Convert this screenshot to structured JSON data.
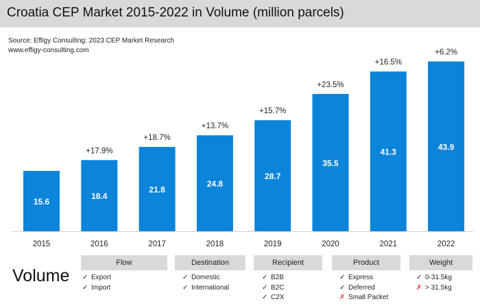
{
  "header": {
    "title": "Croatia CEP Market 2015-2022 in Volume (million parcels)",
    "source": "Source: Effigy Consulting: 2023 CEP Market Research",
    "website": "www.effigy-consulting.com"
  },
  "chart_data": {
    "type": "bar",
    "title": "Croatia CEP Market 2015-2022 in Volume (million parcels)",
    "categories": [
      "2015",
      "2016",
      "2017",
      "2018",
      "2019",
      "2020",
      "2021",
      "2022"
    ],
    "values": [
      15.6,
      18.4,
      21.8,
      24.8,
      28.7,
      35.5,
      41.3,
      43.9
    ],
    "value_labels": [
      "15.6",
      "18.4",
      "21.8",
      "24.8",
      "28.7",
      "35.5",
      "41.3",
      "43.9"
    ],
    "growth_labels": [
      "",
      "+17.9%",
      "+18.7%",
      "+13.7%",
      "+15.7%",
      "+23.5%",
      "+16.5%",
      "+6.2%"
    ],
    "xlabel": "",
    "ylabel": "",
    "ylim": [
      0,
      44
    ],
    "grid": false,
    "bar_color": "#0b84d9"
  },
  "segments": {
    "label": "Volume",
    "groups": [
      {
        "title": "Flow",
        "items": [
          {
            "mark": "✓",
            "included": true,
            "text": "Export"
          },
          {
            "mark": "✓",
            "included": true,
            "text": "Import"
          }
        ]
      },
      {
        "title": "Destination",
        "items": [
          {
            "mark": "✓",
            "included": true,
            "text": "Domestic"
          },
          {
            "mark": "✓",
            "included": true,
            "text": "International"
          }
        ]
      },
      {
        "title": "Recipient",
        "items": [
          {
            "mark": "✓",
            "included": true,
            "text": "B2B"
          },
          {
            "mark": "✓",
            "included": true,
            "text": "B2C"
          },
          {
            "mark": "✓",
            "included": true,
            "text": "C2X"
          }
        ]
      },
      {
        "title": "Product",
        "items": [
          {
            "mark": "✓",
            "included": true,
            "text": "Express"
          },
          {
            "mark": "✓",
            "included": true,
            "text": "Deferred"
          },
          {
            "mark": "✗",
            "included": false,
            "text": "Small Packet"
          }
        ]
      },
      {
        "title": "Weight",
        "items": [
          {
            "mark": "✓",
            "included": true,
            "text": "0-31.5kg"
          },
          {
            "mark": "✗",
            "included": false,
            "text": "> 31.5kg"
          }
        ]
      }
    ]
  }
}
